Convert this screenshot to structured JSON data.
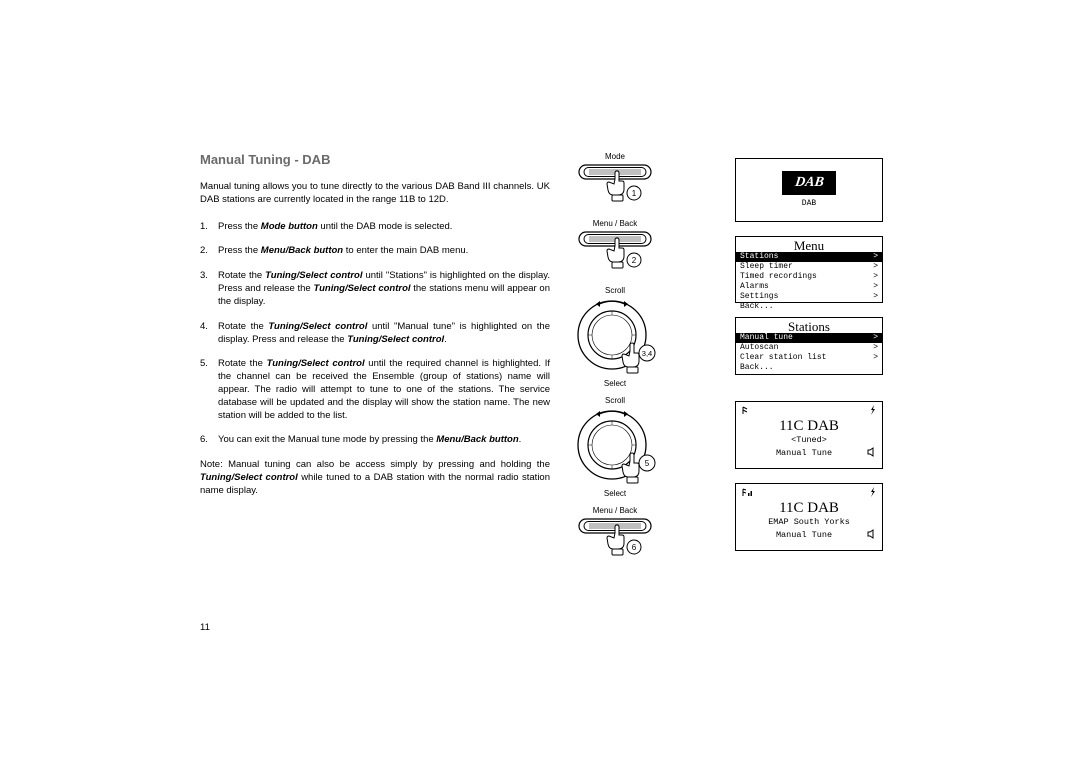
{
  "heading": "Manual Tuning - DAB",
  "intro": "Manual tuning allows you to tune directly to the various DAB Band III channels. UK DAB stations are currently located in the range 11B to 12D.",
  "steps": [
    {
      "n": "1.",
      "pre": "Press the ",
      "b1": "Mode button",
      "post": " until the DAB mode is selected."
    },
    {
      "n": "2.",
      "pre": "Press the ",
      "b1": "Menu/Back button",
      "post": " to enter the main DAB menu."
    },
    {
      "n": "3.",
      "pre": "Rotate the ",
      "b1": "Tuning/Select control",
      "mid": " until \"Stations\" is highlighted on the display.  Press and release the ",
      "b2": "Tuning/Select control",
      "post": " the stations menu will appear on the display."
    },
    {
      "n": "4.",
      "pre": "Rotate the ",
      "b1": "Tuning/Select control",
      "mid": " until \"Manual tune\" is highlighted on the display.  Press and release the ",
      "b2": "Tuning/Select control",
      "post": "."
    },
    {
      "n": "5.",
      "pre": "Rotate the ",
      "b1": "Tuning/Select control",
      "post": " until the required channel is highlighted. If the channel can be received the Ensemble (group of stations) name will appear. The radio will attempt to tune to one of the stations. The service database will be updated and the display will show the station name. The new station will be added to the list."
    },
    {
      "n": "6.",
      "pre": "You can exit the Manual tune mode by pressing the ",
      "b1": "Menu/Back button",
      "post": "."
    }
  ],
  "note_pre": "Note: Manual tuning can also be access simply by pressing and holding the ",
  "note_b": "Tuning/Select control",
  "note_post": " while tuned to a DAB station with the normal radio station name display.",
  "page_number": "11",
  "diagrams": {
    "d1_label": "Mode",
    "d1_step": "1",
    "d2_label": "Menu / Back",
    "d2_step": "2",
    "d3_top": "Scroll",
    "d3_bot": "Select",
    "d3_step": "3,4",
    "d4_top": "Scroll",
    "d4_bot": "Select",
    "d4_step": "5",
    "d5_label": "Menu / Back",
    "d5_step": "6"
  },
  "screens": {
    "dab_logo": "DAB",
    "dab_sub": "DAB",
    "menu1": {
      "title": "Menu",
      "rows": [
        {
          "label": "Stations",
          "arrow": ">",
          "inv": true
        },
        {
          "label": "Sleep timer",
          "arrow": ">",
          "inv": false
        },
        {
          "label": "Timed recordings",
          "arrow": ">",
          "inv": false
        },
        {
          "label": "Alarms",
          "arrow": ">",
          "inv": false
        },
        {
          "label": "Settings",
          "arrow": ">",
          "inv": false
        },
        {
          "label": "Back...",
          "arrow": "",
          "inv": false
        }
      ]
    },
    "menu2": {
      "title": "Stations",
      "rows": [
        {
          "label": "Manual tune",
          "arrow": ">",
          "inv": true
        },
        {
          "label": "Autoscan",
          "arrow": ">",
          "inv": false
        },
        {
          "label": "Clear station list",
          "arrow": ">",
          "inv": false
        },
        {
          "label": "Back...",
          "arrow": "",
          "inv": false
        }
      ]
    },
    "tune1": {
      "freq": "11C DAB",
      "mid": "<Tuned>",
      "bot": "Manual Tune"
    },
    "tune2": {
      "freq": "11C DAB",
      "mid": "EMAP South Yorks",
      "bot": "Manual Tune"
    }
  },
  "colors": {
    "heading": "#6a6a6a",
    "text": "#000000",
    "border": "#000000"
  }
}
